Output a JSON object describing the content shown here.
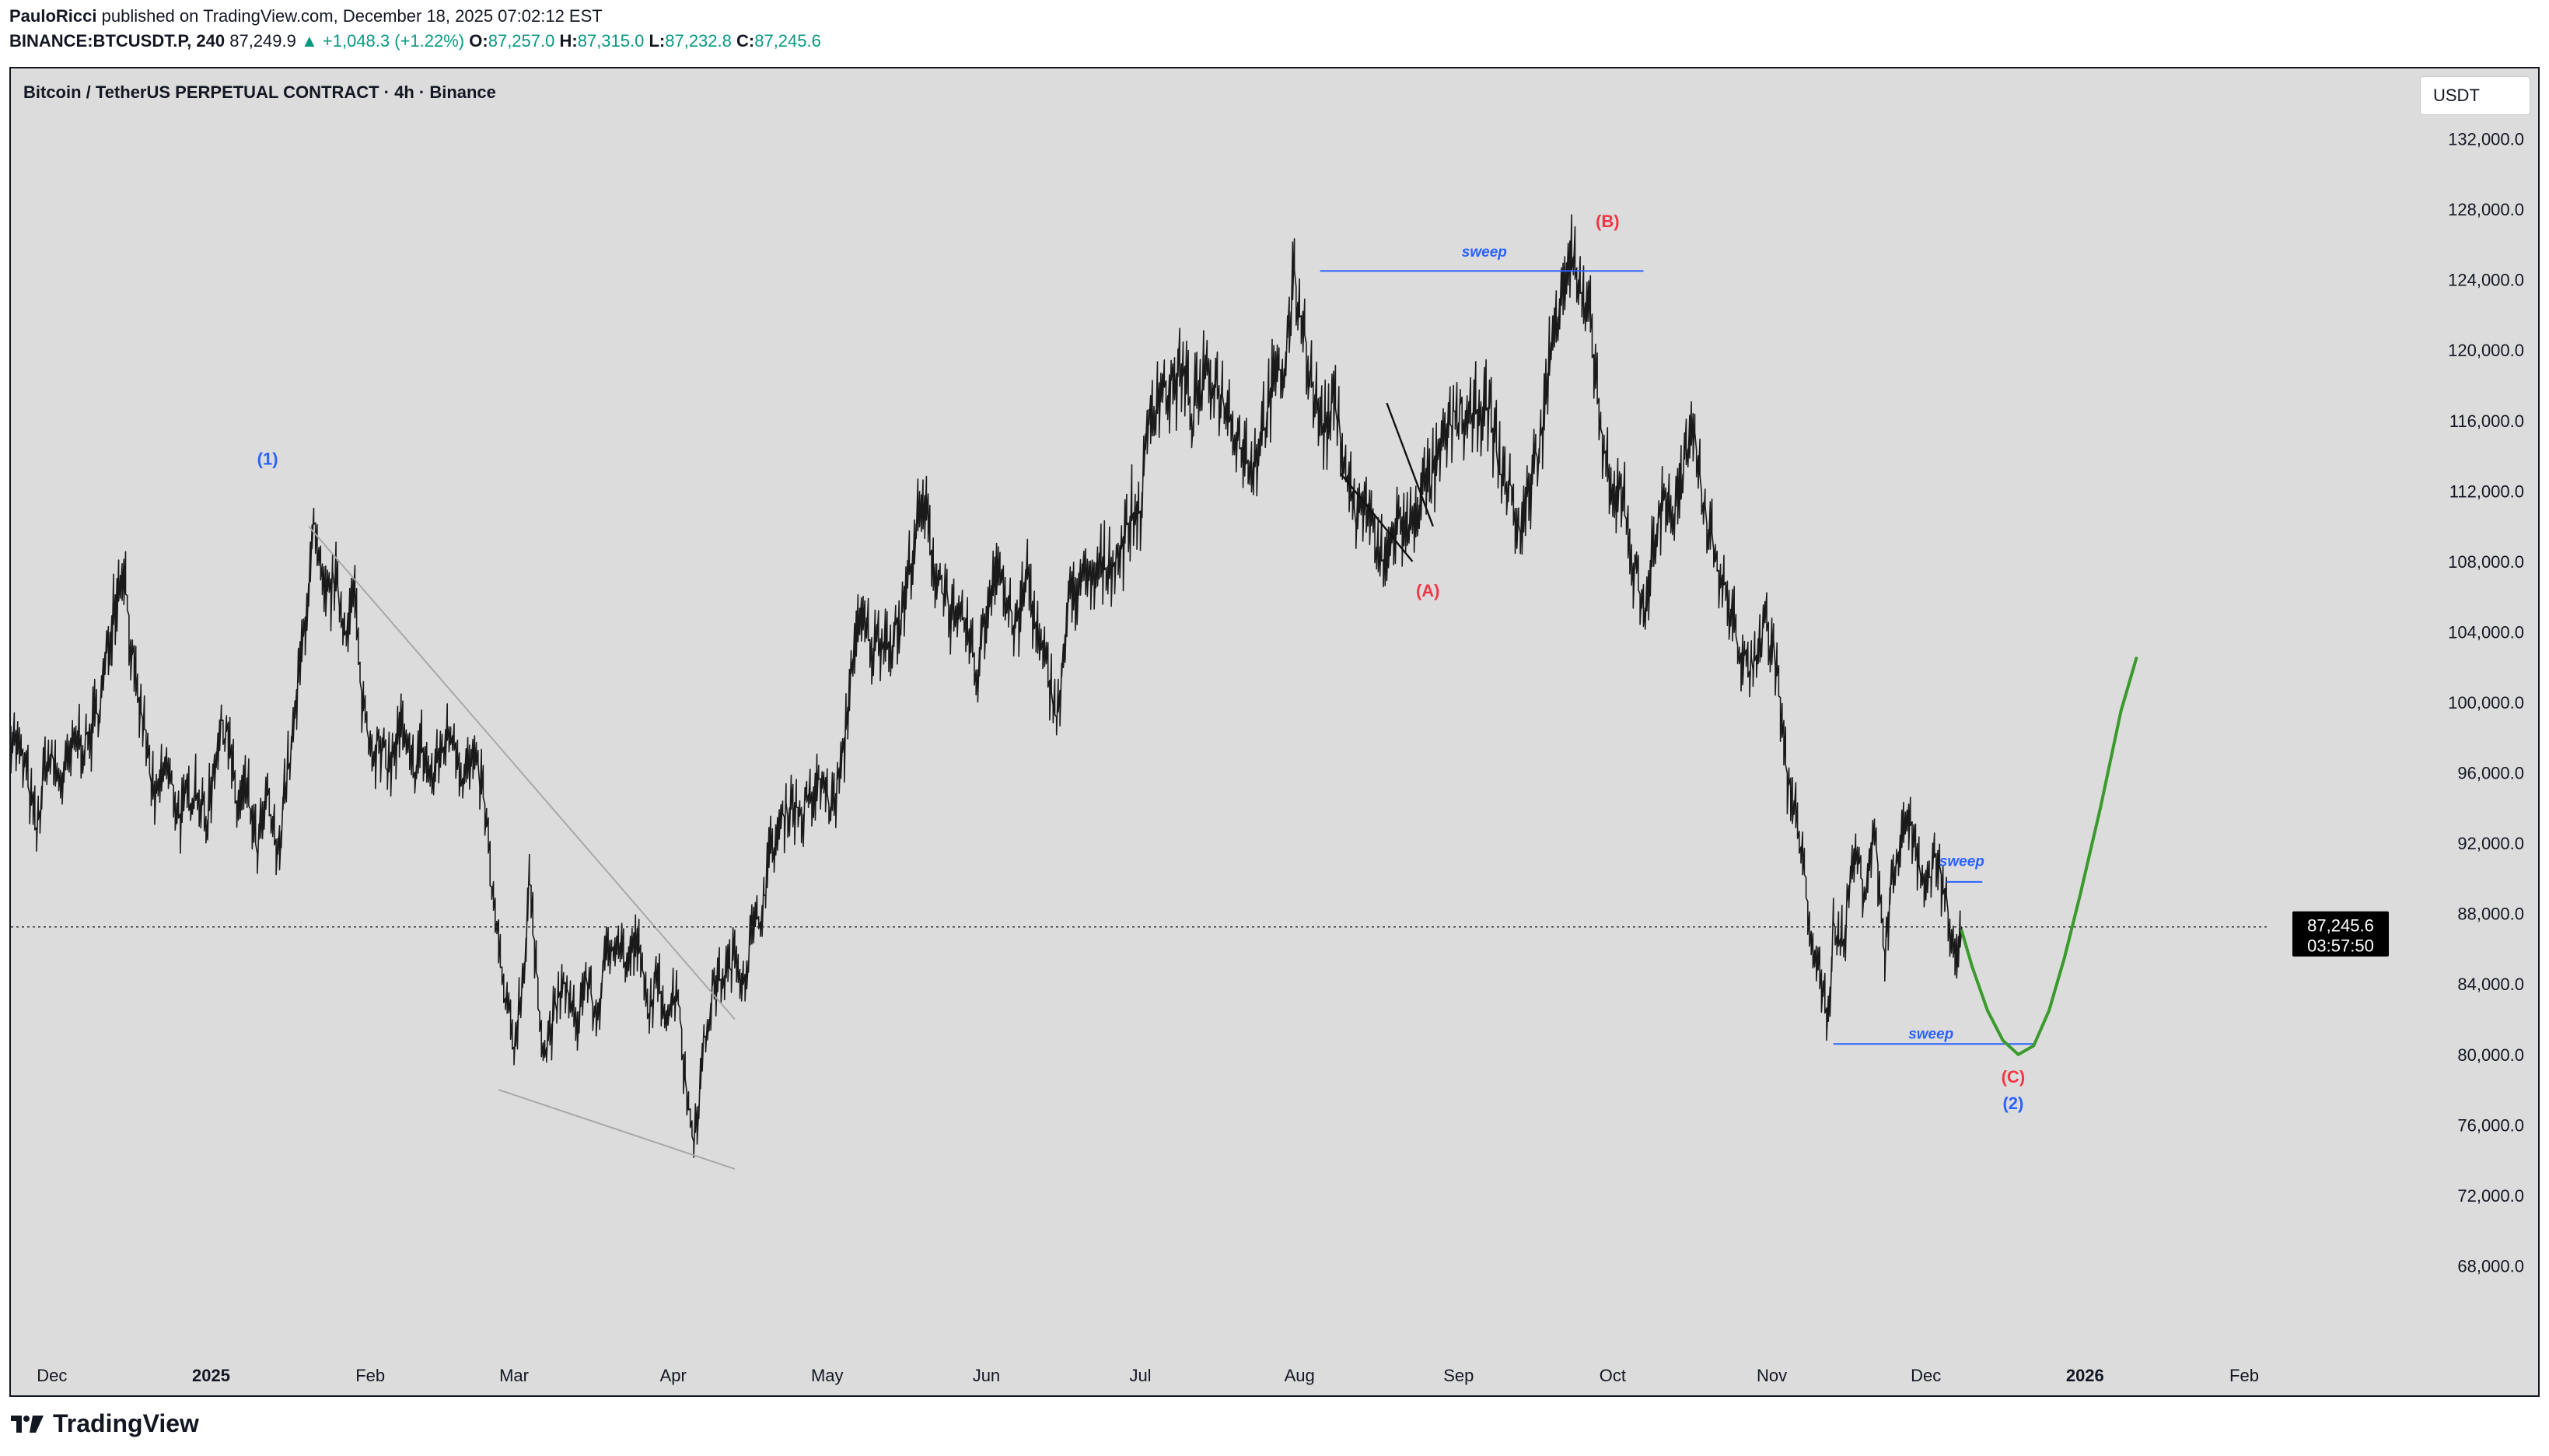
{
  "header": {
    "publisher": "PauloRicci",
    "published_text": "published on TradingView.com, December 18, 2025 07:02:12 EST",
    "symbol": "BINANCE:BTCUSDT.P, 240",
    "last": "87,249.9",
    "change": "▲ +1,048.3 (+1.22%)",
    "open_label": "O:",
    "open": "87,257.0",
    "high_label": "H:",
    "high": "87,315.0",
    "low_label": "L:",
    "low": "87,232.8",
    "close_label": "C:",
    "close": "87,245.6"
  },
  "chart_title": "Bitcoin / TetherUS PERPETUAL CONTRACT · 4h · Binance",
  "currency_button": "USDT",
  "footer": {
    "brand": "TradingView"
  },
  "colors": {
    "background": "#dcdcdc",
    "price": "#1a1a1a",
    "up": "#089981",
    "blue_label": "#2962ff",
    "red_label": "#f23645",
    "projection": "#3a9a2c",
    "trendline": "#a8a8a8"
  },
  "chart_data": {
    "type": "line",
    "title": "Bitcoin / TetherUS PERPETUAL CONTRACT · 4h · Binance",
    "xlabel": "",
    "ylabel": "USDT",
    "ylim": [
      64000,
      136000
    ],
    "xlim": [
      0,
      440
    ],
    "x_unit": "days since 2024-11-23",
    "x_ticks": [
      {
        "label": "Dec",
        "x": 8,
        "bold": false
      },
      {
        "label": "2025",
        "x": 39,
        "bold": true
      },
      {
        "label": "Feb",
        "x": 70,
        "bold": false
      },
      {
        "label": "Mar",
        "x": 98,
        "bold": false
      },
      {
        "label": "Apr",
        "x": 129,
        "bold": false
      },
      {
        "label": "May",
        "x": 159,
        "bold": false
      },
      {
        "label": "Jun",
        "x": 190,
        "bold": false
      },
      {
        "label": "Jul",
        "x": 220,
        "bold": false
      },
      {
        "label": "Aug",
        "x": 251,
        "bold": false
      },
      {
        "label": "Sep",
        "x": 282,
        "bold": false
      },
      {
        "label": "Oct",
        "x": 312,
        "bold": false
      },
      {
        "label": "Nov",
        "x": 343,
        "bold": false
      },
      {
        "label": "Dec",
        "x": 373,
        "bold": false
      },
      {
        "label": "2026",
        "x": 404,
        "bold": true
      },
      {
        "label": "Feb",
        "x": 435,
        "bold": false
      }
    ],
    "y_ticks": [
      {
        "label": "68,000.0",
        "v": 68000
      },
      {
        "label": "72,000.0",
        "v": 72000
      },
      {
        "label": "76,000.0",
        "v": 76000
      },
      {
        "label": "80,000.0",
        "v": 80000
      },
      {
        "label": "84,000.0",
        "v": 84000
      },
      {
        "label": "88,000.0",
        "v": 88000
      },
      {
        "label": "92,000.0",
        "v": 92000
      },
      {
        "label": "96,000.0",
        "v": 96000
      },
      {
        "label": "100,000.0",
        "v": 100000
      },
      {
        "label": "104,000.0",
        "v": 104000
      },
      {
        "label": "108,000.0",
        "v": 108000
      },
      {
        "label": "112,000.0",
        "v": 112000
      },
      {
        "label": "116,000.0",
        "v": 116000
      },
      {
        "label": "120,000.0",
        "v": 120000
      },
      {
        "label": "124,000.0",
        "v": 124000
      },
      {
        "label": "128,000.0",
        "v": 128000
      },
      {
        "label": "132,000.0",
        "v": 132000
      }
    ],
    "series": [
      {
        "name": "BTCUSDT.P price (approx.)",
        "points": [
          [
            0,
            98500
          ],
          [
            3,
            96000
          ],
          [
            5,
            92500
          ],
          [
            7,
            97000
          ],
          [
            10,
            95500
          ],
          [
            13,
            98000
          ],
          [
            15,
            97500
          ],
          [
            18,
            101000
          ],
          [
            20,
            105500
          ],
          [
            22,
            108000
          ],
          [
            24,
            101000
          ],
          [
            26,
            98500
          ],
          [
            28,
            94000
          ],
          [
            30,
            96500
          ],
          [
            33,
            93500
          ],
          [
            36,
            95500
          ],
          [
            38,
            93000
          ],
          [
            40,
            97500
          ],
          [
            42,
            99000
          ],
          [
            44,
            94000
          ],
          [
            46,
            95000
          ],
          [
            48,
            91500
          ],
          [
            50,
            94500
          ],
          [
            52,
            91000
          ],
          [
            53,
            94500
          ],
          [
            55,
            98000
          ],
          [
            57,
            104000
          ],
          [
            59,
            109500
          ],
          [
            61,
            105500
          ],
          [
            63,
            107000
          ],
          [
            65,
            104500
          ],
          [
            67,
            106000
          ],
          [
            68,
            101000
          ],
          [
            70,
            98000
          ],
          [
            72,
            97000
          ],
          [
            74,
            96500
          ],
          [
            76,
            98500
          ],
          [
            78,
            96000
          ],
          [
            80,
            97500
          ],
          [
            82,
            95500
          ],
          [
            84,
            97500
          ],
          [
            86,
            98500
          ],
          [
            88,
            96000
          ],
          [
            90,
            96500
          ],
          [
            92,
            95000
          ],
          [
            94,
            88500
          ],
          [
            96,
            83500
          ],
          [
            98,
            80500
          ],
          [
            100,
            85000
          ],
          [
            101,
            90500
          ],
          [
            102,
            85500
          ],
          [
            104,
            80000
          ],
          [
            106,
            82500
          ],
          [
            108,
            84000
          ],
          [
            110,
            81500
          ],
          [
            112,
            84500
          ],
          [
            114,
            82000
          ],
          [
            116,
            85500
          ],
          [
            118,
            87000
          ],
          [
            120,
            85000
          ],
          [
            122,
            86500
          ],
          [
            124,
            82500
          ],
          [
            126,
            84000
          ],
          [
            128,
            82500
          ],
          [
            130,
            84000
          ],
          [
            131,
            79500
          ],
          [
            132,
            77000
          ],
          [
            133,
            75500
          ],
          [
            134,
            77500
          ],
          [
            135,
            80500
          ],
          [
            137,
            84000
          ],
          [
            139,
            84500
          ],
          [
            141,
            85500
          ],
          [
            143,
            84500
          ],
          [
            144,
            86500
          ],
          [
            146,
            88000
          ],
          [
            148,
            91500
          ],
          [
            150,
            93000
          ],
          [
            152,
            94500
          ],
          [
            154,
            93500
          ],
          [
            156,
            94500
          ],
          [
            158,
            95500
          ],
          [
            160,
            94000
          ],
          [
            162,
            96500
          ],
          [
            164,
            103000
          ],
          [
            166,
            104500
          ],
          [
            168,
            103000
          ],
          [
            170,
            104000
          ],
          [
            172,
            103500
          ],
          [
            174,
            105500
          ],
          [
            176,
            109500
          ],
          [
            178,
            111000
          ],
          [
            180,
            107500
          ],
          [
            182,
            106500
          ],
          [
            184,
            104000
          ],
          [
            186,
            104500
          ],
          [
            188,
            101500
          ],
          [
            190,
            105000
          ],
          [
            192,
            108500
          ],
          [
            194,
            105500
          ],
          [
            196,
            104000
          ],
          [
            198,
            107500
          ],
          [
            200,
            103500
          ],
          [
            202,
            101500
          ],
          [
            204,
            99500
          ],
          [
            206,
            105500
          ],
          [
            208,
            107000
          ],
          [
            210,
            106500
          ],
          [
            212,
            107500
          ],
          [
            214,
            108000
          ],
          [
            216,
            108500
          ],
          [
            218,
            110500
          ],
          [
            220,
            111000
          ],
          [
            222,
            116500
          ],
          [
            224,
            118000
          ],
          [
            226,
            117500
          ],
          [
            228,
            119000
          ],
          [
            230,
            116500
          ],
          [
            232,
            118000
          ],
          [
            234,
            118500
          ],
          [
            236,
            117500
          ],
          [
            238,
            116000
          ],
          [
            240,
            114500
          ],
          [
            242,
            113500
          ],
          [
            244,
            116000
          ],
          [
            246,
            118000
          ],
          [
            248,
            119000
          ],
          [
            250,
            124000
          ],
          [
            252,
            121000
          ],
          [
            254,
            117000
          ],
          [
            256,
            115500
          ],
          [
            258,
            117000
          ],
          [
            260,
            113500
          ],
          [
            262,
            110500
          ],
          [
            264,
            111500
          ],
          [
            266,
            108500
          ],
          [
            268,
            108000
          ],
          [
            270,
            110500
          ],
          [
            272,
            109500
          ],
          [
            274,
            111500
          ],
          [
            276,
            112500
          ],
          [
            278,
            113500
          ],
          [
            280,
            115500
          ],
          [
            282,
            116500
          ],
          [
            284,
            115500
          ],
          [
            286,
            117000
          ],
          [
            288,
            116500
          ],
          [
            290,
            113500
          ],
          [
            292,
            112000
          ],
          [
            294,
            109500
          ],
          [
            296,
            112500
          ],
          [
            298,
            115000
          ],
          [
            300,
            120000
          ],
          [
            302,
            124000
          ],
          [
            304,
            125500
          ],
          [
            306,
            122500
          ],
          [
            308,
            121000
          ],
          [
            310,
            114500
          ],
          [
            312,
            111000
          ],
          [
            314,
            112500
          ],
          [
            316,
            107500
          ],
          [
            318,
            105500
          ],
          [
            320,
            108500
          ],
          [
            322,
            112000
          ],
          [
            324,
            110500
          ],
          [
            326,
            113500
          ],
          [
            328,
            115000
          ],
          [
            330,
            111000
          ],
          [
            332,
            108500
          ],
          [
            334,
            106000
          ],
          [
            336,
            104000
          ],
          [
            338,
            101500
          ],
          [
            340,
            103000
          ],
          [
            342,
            104500
          ],
          [
            344,
            102000
          ],
          [
            346,
            95500
          ],
          [
            348,
            93000
          ],
          [
            350,
            88500
          ],
          [
            352,
            84500
          ],
          [
            354,
            82000
          ],
          [
            355,
            87500
          ],
          [
            357,
            86500
          ],
          [
            359,
            91500
          ],
          [
            361,
            89500
          ],
          [
            363,
            92500
          ],
          [
            365,
            86000
          ],
          [
            367,
            91000
          ],
          [
            369,
            93500
          ],
          [
            371,
            92000
          ],
          [
            373,
            89500
          ],
          [
            375,
            91500
          ],
          [
            377,
            88500
          ],
          [
            379,
            86000
          ],
          [
            380,
            87245
          ]
        ]
      },
      {
        "name": "Projection path (green)",
        "points": [
          [
            380,
            87000
          ],
          [
            382,
            85000
          ],
          [
            385,
            82500
          ],
          [
            388,
            80800
          ],
          [
            391,
            80000
          ],
          [
            394,
            80500
          ],
          [
            397,
            82500
          ],
          [
            400,
            85500
          ],
          [
            403,
            89000
          ],
          [
            407,
            94000
          ],
          [
            411,
            99500
          ],
          [
            414,
            102500
          ]
        ]
      }
    ],
    "annotations": [
      {
        "text": "(1)",
        "x": 50,
        "y": 113500,
        "color": "blue"
      },
      {
        "text": "(A)",
        "x": 276,
        "y": 106000,
        "color": "red"
      },
      {
        "text": "(B)",
        "x": 311,
        "y": 127000,
        "color": "red"
      },
      {
        "text": "(C)",
        "x": 390,
        "y": 78400,
        "color": "red"
      },
      {
        "text": "(2)",
        "x": 390,
        "y": 76900,
        "color": "blue"
      },
      {
        "text": "sweep",
        "x": 287,
        "y": 125300,
        "color": "blue"
      },
      {
        "text": "sweep",
        "x": 374,
        "y": 80900,
        "color": "blue"
      },
      {
        "text": "sweep",
        "x": 380,
        "y": 90700,
        "color": "blue"
      }
    ],
    "horizontal_segments": [
      {
        "from": 255,
        "to": 318,
        "y": 124500
      },
      {
        "from": 355,
        "to": 394,
        "y": 80600
      },
      {
        "from": 377,
        "to": 384,
        "y": 89800
      }
    ],
    "trendlines": [
      {
        "from": [
          58,
          110000
        ],
        "to": [
          141,
          82000
        ],
        "color": "gray"
      },
      {
        "from": [
          95,
          78000
        ],
        "to": [
          141,
          73500
        ],
        "color": "gray"
      },
      {
        "from": [
          259,
          113000
        ],
        "to": [
          273,
          108000
        ],
        "color": "dark"
      },
      {
        "from": [
          268,
          117000
        ],
        "to": [
          277,
          110000
        ],
        "color": "dark"
      }
    ],
    "current_price": {
      "value": 87245.6,
      "label": "87,245.6",
      "countdown": "03:57:50"
    }
  }
}
